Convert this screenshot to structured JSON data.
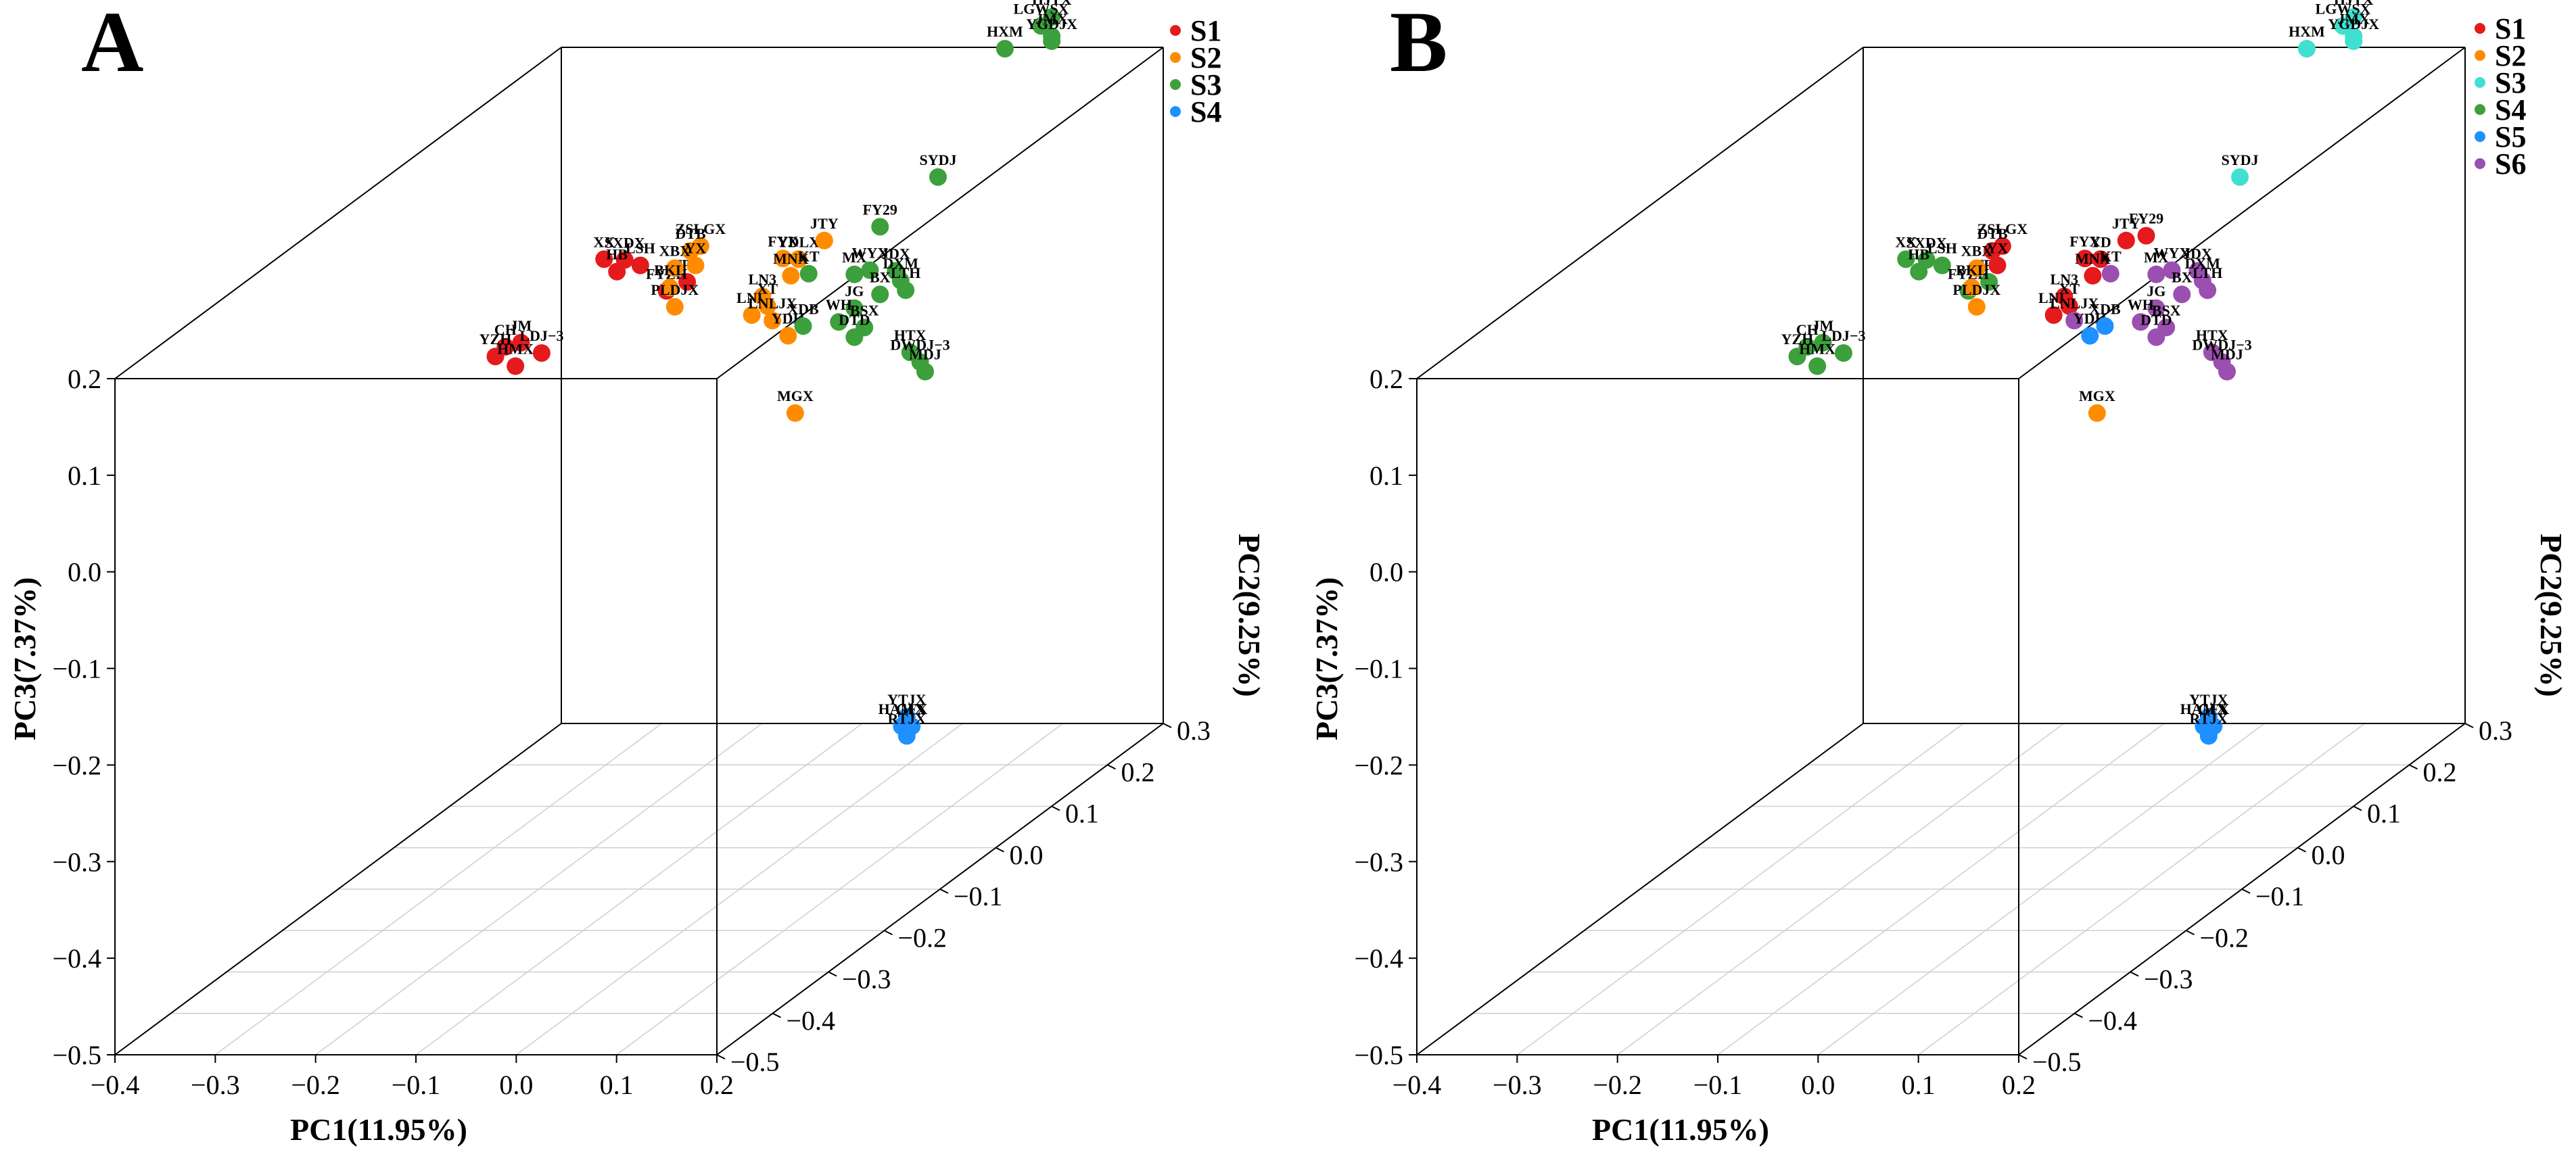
{
  "chart_data": [
    {
      "type": "scatter",
      "panel_label": "A",
      "xlabel": "PC1(11.95%)",
      "ylabel": "PC2(9.25%)",
      "zlabel": "PC3(7.37%)",
      "x_ticks": [
        "−0.4",
        "−0.3",
        "−0.2",
        "−0.1",
        "0.0",
        "0.1",
        "0.2"
      ],
      "y_ticks": [
        "−0.5",
        "−0.4",
        "−0.3",
        "−0.2",
        "−0.1",
        "0.0",
        "0.1",
        "0.2",
        "0.3"
      ],
      "z_ticks": [
        "−0.5",
        "−0.4",
        "−0.3",
        "−0.2",
        "−0.1",
        "0.0",
        "0.1",
        "0.2"
      ],
      "legend": [
        {
          "name": "S1",
          "color": "#e41a1c"
        },
        {
          "name": "S2",
          "color": "#ff8c00"
        },
        {
          "name": "S3",
          "color": "#3ca03c"
        },
        {
          "name": "S4",
          "color": "#1e90ff"
        }
      ],
      "points": [
        {
          "label": "SXDX",
          "group": "S1",
          "pc1": -0.22,
          "pc2": 0.09,
          "pc3": 0.07
        },
        {
          "label": "XX",
          "group": "S1",
          "pc1": -0.235,
          "pc2": 0.08,
          "pc3": 0.075
        },
        {
          "label": "LSH",
          "group": "S1",
          "pc1": -0.21,
          "pc2": 0.1,
          "pc3": 0.06
        },
        {
          "label": "HB",
          "group": "S1",
          "pc1": -0.225,
          "pc2": 0.085,
          "pc3": 0.06
        },
        {
          "label": "TPH",
          "group": "S1",
          "pc1": -0.18,
          "pc2": 0.13,
          "pc3": 0.03
        },
        {
          "label": "FYZH",
          "group": "S1",
          "pc1": -0.195,
          "pc2": 0.12,
          "pc3": 0.025
        },
        {
          "label": "CH",
          "group": "S1",
          "pc1": -0.3,
          "pc2": 0.02,
          "pc3": 0.01
        },
        {
          "label": "JM",
          "group": "S1",
          "pc1": -0.29,
          "pc2": 0.03,
          "pc3": 0.01
        },
        {
          "label": "YZH",
          "group": "S1",
          "pc1": -0.31,
          "pc2": 0.02,
          "pc3": 0.0
        },
        {
          "label": "HMX",
          "group": "S1",
          "pc1": -0.29,
          "pc2": 0.02,
          "pc3": -0.01
        },
        {
          "label": "LDJ−3",
          "group": "S1",
          "pc1": -0.275,
          "pc2": 0.04,
          "pc3": -0.005
        },
        {
          "label": "ZSLGX",
          "group": "S2",
          "pc1": -0.15,
          "pc2": 0.1,
          "pc3": 0.08
        },
        {
          "label": "DTB",
          "group": "S2",
          "pc1": -0.16,
          "pc2": 0.1,
          "pc3": 0.075
        },
        {
          "label": "YX",
          "group": "S2",
          "pc1": -0.155,
          "pc2": 0.1,
          "pc3": 0.06
        },
        {
          "label": "FYX",
          "group": "S2",
          "pc1": -0.09,
          "pc2": 0.14,
          "pc3": 0.05
        },
        {
          "label": "YDLX",
          "group": "S2",
          "pc1": -0.08,
          "pc2": 0.15,
          "pc3": 0.045
        },
        {
          "label": "JTY",
          "group": "S2",
          "pc1": -0.06,
          "pc2": 0.16,
          "pc3": 0.06
        },
        {
          "label": "MNX",
          "group": "S2",
          "pc1": -0.085,
          "pc2": 0.145,
          "pc3": 0.03
        },
        {
          "label": "LN3",
          "group": "S2",
          "pc1": -0.105,
          "pc2": 0.13,
          "pc3": 0.015
        },
        {
          "label": "LNL",
          "group": "S2",
          "pc1": -0.11,
          "pc2": 0.12,
          "pc3": 0.0
        },
        {
          "label": "XT",
          "group": "S2",
          "pc1": -0.1,
          "pc2": 0.13,
          "pc3": 0.005
        },
        {
          "label": "LNLJX",
          "group": "S2",
          "pc1": -0.095,
          "pc2": 0.13,
          "pc3": -0.01
        },
        {
          "label": "YDH",
          "group": "S2",
          "pc1": -0.085,
          "pc2": 0.14,
          "pc3": -0.03
        },
        {
          "label": "MGX",
          "group": "S2",
          "pc1": 0.0,
          "pc2": 0.0,
          "pc3": -0.05
        },
        {
          "label": "XBX",
          "group": "S2",
          "pc1": -0.12,
          "pc2": 0.0,
          "pc3": 0.1
        },
        {
          "label": "BKL",
          "group": "S2",
          "pc1": -0.125,
          "pc2": 0.0,
          "pc3": 0.08
        },
        {
          "label": "PLDJX",
          "group": "S2",
          "pc1": -0.12,
          "pc2": 0.0,
          "pc3": 0.06
        },
        {
          "label": "HJTX",
          "group": "S3",
          "pc1": 0.1,
          "pc2": 0.28,
          "pc3": 0.24
        },
        {
          "label": "LGWSX",
          "group": "S3",
          "pc1": 0.095,
          "pc2": 0.27,
          "pc3": 0.235
        },
        {
          "label": "JMX",
          "group": "S3",
          "pc1": 0.1,
          "pc2": 0.28,
          "pc3": 0.22
        },
        {
          "label": "YGDJX",
          "group": "S3",
          "pc1": 0.1,
          "pc2": 0.28,
          "pc3": 0.215
        },
        {
          "label": "HXM",
          "group": "S3",
          "pc1": 0.07,
          "pc2": 0.25,
          "pc3": 0.22
        },
        {
          "label": "SYDJ",
          "group": "S3",
          "pc1": 0.02,
          "pc2": 0.22,
          "pc3": 0.1
        },
        {
          "label": "FY29",
          "group": "S3",
          "pc1": -0.01,
          "pc2": 0.17,
          "pc3": 0.07
        },
        {
          "label": "KT",
          "group": "S3",
          "pc1": -0.07,
          "pc2": 0.15,
          "pc3": 0.03
        },
        {
          "label": "MX",
          "group": "S3",
          "pc1": -0.03,
          "pc2": 0.16,
          "pc3": 0.025
        },
        {
          "label": "WYX",
          "group": "S3",
          "pc1": -0.02,
          "pc2": 0.17,
          "pc3": 0.025
        },
        {
          "label": "JDX",
          "group": "S3",
          "pc1": 0.0,
          "pc2": 0.18,
          "pc3": 0.02
        },
        {
          "label": "DXM",
          "group": "S3",
          "pc1": 0.005,
          "pc2": 0.18,
          "pc3": 0.01
        },
        {
          "label": "LTH",
          "group": "S3",
          "pc1": 0.01,
          "pc2": 0.18,
          "pc3": 0.0
        },
        {
          "label": "BX",
          "group": "S3",
          "pc1": -0.01,
          "pc2": 0.17,
          "pc3": 0.0
        },
        {
          "label": "JG",
          "group": "S3",
          "pc1": -0.03,
          "pc2": 0.16,
          "pc3": -0.01
        },
        {
          "label": "XDB",
          "group": "S3",
          "pc1": -0.07,
          "pc2": 0.14,
          "pc3": -0.02
        },
        {
          "label": "WH",
          "group": "S3",
          "pc1": -0.04,
          "pc2": 0.15,
          "pc3": -0.02
        },
        {
          "label": "BSX",
          "group": "S3",
          "pc1": -0.02,
          "pc2": 0.16,
          "pc3": -0.03
        },
        {
          "label": "DTD",
          "group": "S3",
          "pc1": -0.03,
          "pc2": 0.16,
          "pc3": -0.04
        },
        {
          "label": "HTX",
          "group": "S3",
          "pc1": 0.02,
          "pc2": 0.17,
          "pc3": -0.06
        },
        {
          "label": "DWDJ−3",
          "group": "S3",
          "pc1": 0.03,
          "pc2": 0.17,
          "pc3": -0.07
        },
        {
          "label": "MDJ",
          "group": "S3",
          "pc1": 0.035,
          "pc2": 0.17,
          "pc3": -0.08
        },
        {
          "label": "YTJX",
          "group": "S4",
          "pc1": 0.0,
          "pc2": 0.2,
          "pc3": -0.45
        },
        {
          "label": "HAMX",
          "group": "S4",
          "pc1": -0.005,
          "pc2": 0.2,
          "pc3": -0.46
        },
        {
          "label": "GFX",
          "group": "S4",
          "pc1": 0.005,
          "pc2": 0.2,
          "pc3": -0.46
        },
        {
          "label": "RTJX",
          "group": "S4",
          "pc1": 0.0,
          "pc2": 0.2,
          "pc3": -0.47
        }
      ]
    },
    {
      "type": "scatter",
      "panel_label": "B",
      "xlabel": "PC1(11.95%)",
      "ylabel": "PC2(9.25%)",
      "zlabel": "PC3(7.37%)",
      "x_ticks": [
        "−0.4",
        "−0.3",
        "−0.2",
        "−0.1",
        "0.0",
        "0.1",
        "0.2"
      ],
      "y_ticks": [
        "−0.5",
        "−0.4",
        "−0.3",
        "−0.2",
        "−0.1",
        "0.0",
        "0.1",
        "0.2",
        "0.3"
      ],
      "z_ticks": [
        "−0.5",
        "−0.4",
        "−0.3",
        "−0.2",
        "−0.1",
        "0.0",
        "0.1",
        "0.2"
      ],
      "legend": [
        {
          "name": "S1",
          "color": "#e41a1c"
        },
        {
          "name": "S2",
          "color": "#ff8c00"
        },
        {
          "name": "S3",
          "color": "#40e0d0"
        },
        {
          "name": "S4",
          "color": "#3ca03c"
        },
        {
          "name": "S5",
          "color": "#1e90ff"
        },
        {
          "name": "S6",
          "color": "#9b4fb0"
        }
      ],
      "points": [
        {
          "label": "SXDX",
          "group": "S4",
          "pc1": -0.22,
          "pc2": 0.09,
          "pc3": 0.07
        },
        {
          "label": "XX",
          "group": "S4",
          "pc1": -0.235,
          "pc2": 0.08,
          "pc3": 0.075
        },
        {
          "label": "LSH",
          "group": "S4",
          "pc1": -0.21,
          "pc2": 0.1,
          "pc3": 0.06
        },
        {
          "label": "HB",
          "group": "S4",
          "pc1": -0.225,
          "pc2": 0.085,
          "pc3": 0.06
        },
        {
          "label": "TPH",
          "group": "S4",
          "pc1": -0.18,
          "pc2": 0.13,
          "pc3": 0.03
        },
        {
          "label": "FYZH",
          "group": "S4",
          "pc1": -0.195,
          "pc2": 0.12,
          "pc3": 0.025
        },
        {
          "label": "CH",
          "group": "S4",
          "pc1": -0.3,
          "pc2": 0.02,
          "pc3": 0.01
        },
        {
          "label": "JM",
          "group": "S4",
          "pc1": -0.29,
          "pc2": 0.03,
          "pc3": 0.01
        },
        {
          "label": "YZH",
          "group": "S4",
          "pc1": -0.31,
          "pc2": 0.02,
          "pc3": 0.0
        },
        {
          "label": "HMX",
          "group": "S4",
          "pc1": -0.29,
          "pc2": 0.02,
          "pc3": -0.01
        },
        {
          "label": "LDJ−3",
          "group": "S4",
          "pc1": -0.275,
          "pc2": 0.04,
          "pc3": -0.005
        },
        {
          "label": "ZSLGX",
          "group": "S1",
          "pc1": -0.15,
          "pc2": 0.1,
          "pc3": 0.08
        },
        {
          "label": "DTB",
          "group": "S1",
          "pc1": -0.16,
          "pc2": 0.1,
          "pc3": 0.075
        },
        {
          "label": "YX",
          "group": "S1",
          "pc1": -0.155,
          "pc2": 0.1,
          "pc3": 0.06
        },
        {
          "label": "FYX",
          "group": "S1",
          "pc1": -0.09,
          "pc2": 0.14,
          "pc3": 0.05
        },
        {
          "label": "JTY",
          "group": "S1",
          "pc1": -0.06,
          "pc2": 0.16,
          "pc3": 0.06
        },
        {
          "label": "FY29",
          "group": "S1",
          "pc1": -0.04,
          "pc2": 0.16,
          "pc3": 0.065
        },
        {
          "label": "YD",
          "group": "S1",
          "pc1": -0.08,
          "pc2": 0.15,
          "pc3": 0.045
        },
        {
          "label": "MNX",
          "group": "S1",
          "pc1": -0.085,
          "pc2": 0.145,
          "pc3": 0.03
        },
        {
          "label": "LN3",
          "group": "S1",
          "pc1": -0.105,
          "pc2": 0.13,
          "pc3": 0.015
        },
        {
          "label": "LNL",
          "group": "S1",
          "pc1": -0.11,
          "pc2": 0.12,
          "pc3": 0.0
        },
        {
          "label": "XT",
          "group": "S1",
          "pc1": -0.1,
          "pc2": 0.13,
          "pc3": 0.005
        },
        {
          "label": "KT",
          "group": "S6",
          "pc1": -0.07,
          "pc2": 0.15,
          "pc3": 0.03
        },
        {
          "label": "LNLJX",
          "group": "S6",
          "pc1": -0.095,
          "pc2": 0.13,
          "pc3": -0.01
        },
        {
          "label": "YDH",
          "group": "S5",
          "pc1": -0.085,
          "pc2": 0.14,
          "pc3": -0.03
        },
        {
          "label": "XDB",
          "group": "S5",
          "pc1": -0.07,
          "pc2": 0.14,
          "pc3": -0.02
        },
        {
          "label": "MGX",
          "group": "S2",
          "pc1": 0.0,
          "pc2": 0.0,
          "pc3": -0.05
        },
        {
          "label": "XBX",
          "group": "S2",
          "pc1": -0.12,
          "pc2": 0.0,
          "pc3": 0.1
        },
        {
          "label": "BKL",
          "group": "S2",
          "pc1": -0.125,
          "pc2": 0.0,
          "pc3": 0.08
        },
        {
          "label": "PLDJX",
          "group": "S2",
          "pc1": -0.12,
          "pc2": 0.0,
          "pc3": 0.06
        },
        {
          "label": "HJTX",
          "group": "S3",
          "pc1": 0.1,
          "pc2": 0.28,
          "pc3": 0.24
        },
        {
          "label": "LGWSX",
          "group": "S3",
          "pc1": 0.095,
          "pc2": 0.27,
          "pc3": 0.235
        },
        {
          "label": "JMX",
          "group": "S3",
          "pc1": 0.1,
          "pc2": 0.28,
          "pc3": 0.22
        },
        {
          "label": "YGDJX",
          "group": "S3",
          "pc1": 0.1,
          "pc2": 0.28,
          "pc3": 0.215
        },
        {
          "label": "HXM",
          "group": "S3",
          "pc1": 0.07,
          "pc2": 0.25,
          "pc3": 0.22
        },
        {
          "label": "SYDJ",
          "group": "S3",
          "pc1": 0.02,
          "pc2": 0.22,
          "pc3": 0.1
        },
        {
          "label": "MX",
          "group": "S6",
          "pc1": -0.03,
          "pc2": 0.16,
          "pc3": 0.025
        },
        {
          "label": "WYX",
          "group": "S6",
          "pc1": -0.02,
          "pc2": 0.17,
          "pc3": 0.025
        },
        {
          "label": "JDX",
          "group": "S6",
          "pc1": 0.0,
          "pc2": 0.18,
          "pc3": 0.02
        },
        {
          "label": "DXM",
          "group": "S6",
          "pc1": 0.005,
          "pc2": 0.18,
          "pc3": 0.01
        },
        {
          "label": "LTH",
          "group": "S6",
          "pc1": 0.01,
          "pc2": 0.18,
          "pc3": 0.0
        },
        {
          "label": "BX",
          "group": "S6",
          "pc1": -0.01,
          "pc2": 0.17,
          "pc3": 0.0
        },
        {
          "label": "JG",
          "group": "S6",
          "pc1": -0.03,
          "pc2": 0.16,
          "pc3": -0.01
        },
        {
          "label": "WH",
          "group": "S6",
          "pc1": -0.04,
          "pc2": 0.15,
          "pc3": -0.02
        },
        {
          "label": "BSX",
          "group": "S6",
          "pc1": -0.02,
          "pc2": 0.16,
          "pc3": -0.03
        },
        {
          "label": "DTD",
          "group": "S6",
          "pc1": -0.03,
          "pc2": 0.16,
          "pc3": -0.04
        },
        {
          "label": "HTX",
          "group": "S6",
          "pc1": 0.02,
          "pc2": 0.17,
          "pc3": -0.06
        },
        {
          "label": "DWDJ−3",
          "group": "S6",
          "pc1": 0.03,
          "pc2": 0.17,
          "pc3": -0.07
        },
        {
          "label": "MDJ",
          "group": "S6",
          "pc1": 0.035,
          "pc2": 0.17,
          "pc3": -0.08
        },
        {
          "label": "YTJX",
          "group": "S5",
          "pc1": 0.0,
          "pc2": 0.2,
          "pc3": -0.45
        },
        {
          "label": "HAMX",
          "group": "S5",
          "pc1": -0.005,
          "pc2": 0.2,
          "pc3": -0.46
        },
        {
          "label": "GFX",
          "group": "S5",
          "pc1": 0.005,
          "pc2": 0.2,
          "pc3": -0.46
        },
        {
          "label": "RTJX",
          "group": "S5",
          "pc1": 0.0,
          "pc2": 0.2,
          "pc3": -0.47
        }
      ]
    }
  ]
}
